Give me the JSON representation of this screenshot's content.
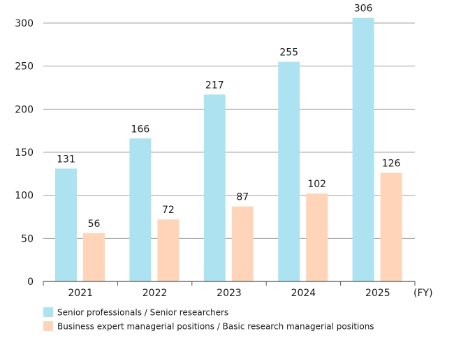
{
  "chart_data": {
    "type": "bar",
    "title": "",
    "xlabel": "",
    "ylabel": "",
    "x_unit": "(FY)",
    "categories": [
      "2021",
      "2022",
      "2023",
      "2024",
      "2025"
    ],
    "ylim": [
      0,
      300
    ],
    "yticks": [
      0,
      50,
      100,
      150,
      200,
      250,
      300
    ],
    "grid": true,
    "legend_position": "bottom-left",
    "series": [
      {
        "name": "Senior professionals / Senior researchers",
        "values": [
          131,
          166,
          217,
          255,
          306
        ],
        "color": "#ade3f1"
      },
      {
        "name": "Business expert managerial positions / Basic research managerial positions",
        "values": [
          56,
          72,
          87,
          102,
          126
        ],
        "color": "#ffd4b8"
      }
    ],
    "gridline_color": "#a0a0a0",
    "axis_color": "#555555"
  }
}
